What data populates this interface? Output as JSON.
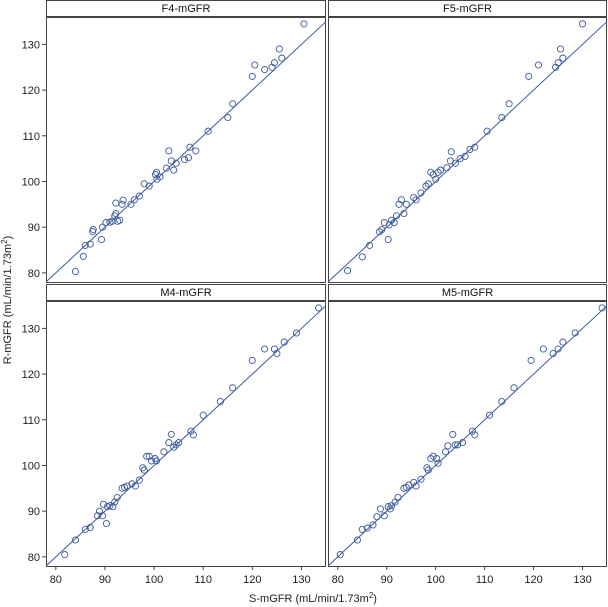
{
  "chart_data": {
    "type": "scatter",
    "layout": "2x2 trellis",
    "xlabel": "S-mGFR (mL/min/1.73m",
    "xlabel_sup": "2",
    "xlabel_tail": ")",
    "ylabel": "R-mGFR (mL/min/1.73m",
    "ylabel_sup": "2",
    "ylabel_tail": ")",
    "xlim": [
      78,
      135
    ],
    "ylim": [
      78,
      136
    ],
    "xticks": [
      80,
      90,
      100,
      110,
      120,
      130
    ],
    "yticks": [
      80,
      90,
      100,
      110,
      120,
      130
    ],
    "reference_line": "identity (y = x)",
    "colors": {
      "marker": "#3a5a9c",
      "line": "#3a5a9c",
      "frame": "#444444",
      "grid": "#bbbbbb"
    },
    "panels": [
      {
        "title": "F4-mGFR",
        "points": [
          [
            84,
            80.3
          ],
          [
            85.6,
            83.6
          ],
          [
            86,
            86
          ],
          [
            87,
            86.3
          ],
          [
            87.5,
            89
          ],
          [
            87.6,
            89.5
          ],
          [
            89.3,
            87.3
          ],
          [
            89.5,
            90
          ],
          [
            90.2,
            91
          ],
          [
            91,
            91.1
          ],
          [
            91.5,
            91.3
          ],
          [
            92,
            92.5
          ],
          [
            92.2,
            93
          ],
          [
            92.2,
            95.3
          ],
          [
            92.6,
            91.3
          ],
          [
            93,
            91.5
          ],
          [
            93.5,
            95
          ],
          [
            93.7,
            95.9
          ],
          [
            95.3,
            95
          ],
          [
            96,
            96
          ],
          [
            97,
            96.8
          ],
          [
            98,
            99.5
          ],
          [
            99,
            99
          ],
          [
            100.3,
            101.5
          ],
          [
            100.5,
            102
          ],
          [
            100.6,
            100.5
          ],
          [
            101.2,
            101
          ],
          [
            102.5,
            102.9
          ],
          [
            103,
            106.7
          ],
          [
            103.5,
            104.5
          ],
          [
            104,
            102.5
          ],
          [
            104.5,
            104
          ],
          [
            106.2,
            104.8
          ],
          [
            107,
            105.2
          ],
          [
            107.3,
            107.5
          ],
          [
            108.5,
            106.7
          ],
          [
            111,
            111
          ],
          [
            115,
            114
          ],
          [
            116,
            117
          ],
          [
            120,
            123
          ],
          [
            120.5,
            125.5
          ],
          [
            122.5,
            124.5
          ],
          [
            124,
            125
          ],
          [
            124.5,
            126
          ],
          [
            125.5,
            129
          ],
          [
            126,
            127
          ],
          [
            130.5,
            134.5
          ]
        ]
      },
      {
        "title": "F5-mGFR",
        "points": [
          [
            82,
            80.5
          ],
          [
            85,
            83.5
          ],
          [
            86.5,
            86
          ],
          [
            88.5,
            89
          ],
          [
            89,
            89.5
          ],
          [
            89.5,
            91
          ],
          [
            90.3,
            87.3
          ],
          [
            90.5,
            90.5
          ],
          [
            91,
            91.5
          ],
          [
            91.5,
            91
          ],
          [
            92,
            92.5
          ],
          [
            92.5,
            95
          ],
          [
            93,
            96
          ],
          [
            93.5,
            93
          ],
          [
            94,
            95
          ],
          [
            95.5,
            96.5
          ],
          [
            96,
            96
          ],
          [
            97,
            97.5
          ],
          [
            98,
            99
          ],
          [
            98.5,
            99.5
          ],
          [
            99,
            102
          ],
          [
            99.5,
            101.5
          ],
          [
            100,
            100.5
          ],
          [
            100.5,
            102
          ],
          [
            101,
            102.5
          ],
          [
            102.3,
            103
          ],
          [
            103,
            104.5
          ],
          [
            103.2,
            106.5
          ],
          [
            104,
            104
          ],
          [
            105,
            105
          ],
          [
            106,
            105.5
          ],
          [
            107,
            107
          ],
          [
            108,
            107.5
          ],
          [
            110.5,
            111
          ],
          [
            113.5,
            114
          ],
          [
            115,
            117
          ],
          [
            119,
            123
          ],
          [
            121,
            125.5
          ],
          [
            124.5,
            125
          ],
          [
            125,
            126
          ],
          [
            125.5,
            129
          ],
          [
            126,
            127
          ],
          [
            130,
            134.5
          ]
        ]
      },
      {
        "title": "M4-mGFR",
        "points": [
          [
            81.8,
            80.5
          ],
          [
            84,
            83.7
          ],
          [
            86,
            86
          ],
          [
            87,
            86.4
          ],
          [
            88.5,
            89
          ],
          [
            88.9,
            90
          ],
          [
            89.5,
            89
          ],
          [
            89.7,
            91.5
          ],
          [
            90.3,
            87.3
          ],
          [
            90.5,
            91
          ],
          [
            91,
            91.2
          ],
          [
            91.6,
            91
          ],
          [
            92,
            92
          ],
          [
            92.5,
            93
          ],
          [
            93.5,
            95
          ],
          [
            94,
            95.2
          ],
          [
            94.5,
            95.5
          ],
          [
            95.5,
            96
          ],
          [
            96.2,
            95.5
          ],
          [
            97,
            96.8
          ],
          [
            97.7,
            99.5
          ],
          [
            98,
            99
          ],
          [
            98.5,
            102
          ],
          [
            99,
            102
          ],
          [
            99.5,
            101
          ],
          [
            100.2,
            101.5
          ],
          [
            100.5,
            101
          ],
          [
            102,
            103
          ],
          [
            103,
            105
          ],
          [
            103.5,
            106.8
          ],
          [
            104,
            104
          ],
          [
            104.5,
            104.5
          ],
          [
            105,
            105
          ],
          [
            107.5,
            107.5
          ],
          [
            108,
            106.7
          ],
          [
            110,
            111
          ],
          [
            113.5,
            114
          ],
          [
            116,
            117
          ],
          [
            120,
            123
          ],
          [
            122.5,
            125.5
          ],
          [
            124.5,
            125.5
          ],
          [
            125,
            124.5
          ],
          [
            126.5,
            127
          ],
          [
            129,
            129
          ],
          [
            133.5,
            134.5
          ]
        ]
      },
      {
        "title": "M5-mGFR",
        "points": [
          [
            80.5,
            80.5
          ],
          [
            84,
            83.7
          ],
          [
            85,
            86
          ],
          [
            86,
            86.3
          ],
          [
            87.2,
            87
          ],
          [
            88,
            88.8
          ],
          [
            88.7,
            90.5
          ],
          [
            89.5,
            89
          ],
          [
            90.3,
            91
          ],
          [
            90.7,
            90.5
          ],
          [
            91,
            91.2
          ],
          [
            91.7,
            92
          ],
          [
            92.3,
            93
          ],
          [
            93.5,
            95
          ],
          [
            94,
            95.2
          ],
          [
            94.5,
            95.7
          ],
          [
            95.5,
            96.3
          ],
          [
            96,
            95.5
          ],
          [
            97,
            97
          ],
          [
            98.2,
            99.5
          ],
          [
            98.5,
            99
          ],
          [
            99,
            101.5
          ],
          [
            99.5,
            102
          ],
          [
            100.2,
            101.5
          ],
          [
            100.5,
            100.5
          ],
          [
            102,
            103
          ],
          [
            102.5,
            104.3
          ],
          [
            103.5,
            106.8
          ],
          [
            104,
            104.5
          ],
          [
            104.5,
            104.5
          ],
          [
            105.5,
            105
          ],
          [
            107.5,
            107.5
          ],
          [
            108,
            106.7
          ],
          [
            111,
            111
          ],
          [
            113.5,
            114
          ],
          [
            116,
            117
          ],
          [
            119.5,
            123
          ],
          [
            122,
            125.5
          ],
          [
            124,
            124.5
          ],
          [
            125,
            125.5
          ],
          [
            126,
            127
          ],
          [
            128.5,
            129
          ],
          [
            134,
            134.5
          ]
        ]
      }
    ]
  }
}
